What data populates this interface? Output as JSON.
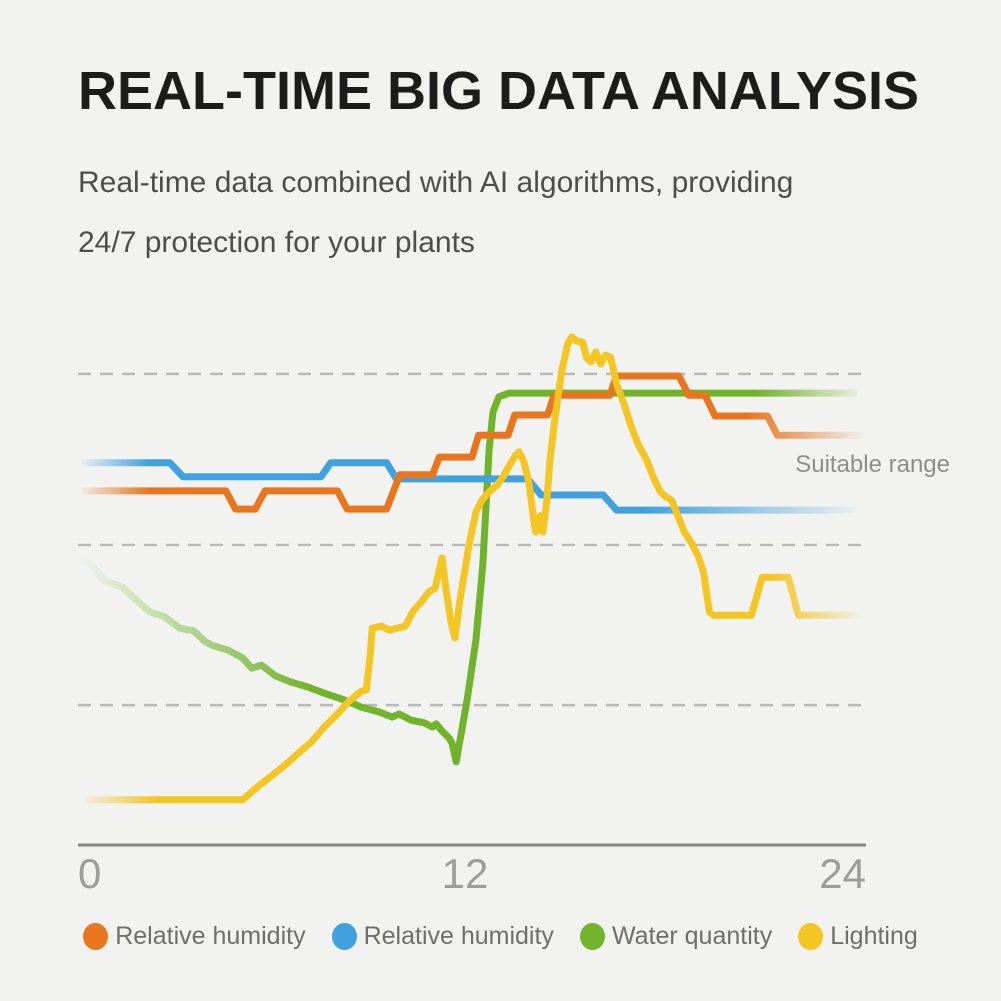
{
  "header": {
    "title": "REAL-TIME BIG DATA ANALYSIS",
    "subtitle_line1": "Real-time data combined with AI algorithms, providing",
    "subtitle_line2": "24/7 protection for your plants"
  },
  "colors": {
    "background": "#f2f2f1",
    "title_text": "#1c1c1c",
    "subtitle_text": "#4d4d4d",
    "gridline": "#b9b9b7",
    "axis": "#858585",
    "tick_text": "#9c9c9c",
    "annotation_text": "#8d8d8d",
    "legend_text": "#6e6e6e"
  },
  "chart_data": {
    "type": "line",
    "x_range": [
      0,
      24
    ],
    "x_ticks": [
      "0",
      "12",
      "24"
    ],
    "y_axis_visible": false,
    "y_scale": [
      0,
      100
    ],
    "grid": "dashed-horizontal",
    "gridline_values": [
      90.6,
      57.7,
      26.9
    ],
    "annotation": "Suitable range",
    "legend_position": "bottom",
    "series": [
      {
        "name": "Water quantity",
        "color": "#71b32b",
        "fade": {
          "in": 0.3,
          "out": 0.86
        },
        "points": [
          [
            0.06,
            55.2
          ],
          [
            0.43,
            53.7
          ],
          [
            0.82,
            50.8
          ],
          [
            1.34,
            49.6
          ],
          [
            1.67,
            47.7
          ],
          [
            2.19,
            44.8
          ],
          [
            2.61,
            44.0
          ],
          [
            3.1,
            41.7
          ],
          [
            3.52,
            41.2
          ],
          [
            3.89,
            39.0
          ],
          [
            4.13,
            38.3
          ],
          [
            4.56,
            37.5
          ],
          [
            5.01,
            36.0
          ],
          [
            5.29,
            34.0
          ],
          [
            5.59,
            34.6
          ],
          [
            6.02,
            32.5
          ],
          [
            6.5,
            31.3
          ],
          [
            6.99,
            30.4
          ],
          [
            7.5,
            29.2
          ],
          [
            8.11,
            27.9
          ],
          [
            8.63,
            26.5
          ],
          [
            9.17,
            25.6
          ],
          [
            9.57,
            24.6
          ],
          [
            9.78,
            25.2
          ],
          [
            10.15,
            24.0
          ],
          [
            10.54,
            23.5
          ],
          [
            10.79,
            22.7
          ],
          [
            10.91,
            23.3
          ],
          [
            11.09,
            21.9
          ],
          [
            11.3,
            20.6
          ],
          [
            11.39,
            19.6
          ],
          [
            11.52,
            16.0
          ],
          [
            11.85,
            27.9
          ],
          [
            12.12,
            39.4
          ],
          [
            12.33,
            53.8
          ],
          [
            12.52,
            76.0
          ],
          [
            12.64,
            83.3
          ],
          [
            12.82,
            86.2
          ],
          [
            13.13,
            86.9
          ],
          [
            23.64,
            86.9
          ]
        ]
      },
      {
        "name": "Relative humidity (blue)",
        "color": "#41a1df",
        "fade": {
          "in": 0.09,
          "out": 0.72
        },
        "points": [
          [
            0.2,
            73.5
          ],
          [
            2.8,
            73.5
          ],
          [
            3.2,
            70.8
          ],
          [
            7.4,
            70.8
          ],
          [
            7.7,
            73.5
          ],
          [
            9.4,
            73.5
          ],
          [
            9.7,
            70.4
          ],
          [
            13.7,
            70.4
          ],
          [
            14.1,
            67.3
          ],
          [
            16.0,
            67.3
          ],
          [
            16.4,
            64.4
          ],
          [
            23.6,
            64.4
          ]
        ]
      },
      {
        "name": "Relative humidity (orange)",
        "color": "#e8761e",
        "fade": {
          "in": 0.09,
          "out": 0.85
        },
        "points": [
          [
            0.2,
            68.1
          ],
          [
            4.5,
            68.1
          ],
          [
            4.8,
            64.6
          ],
          [
            5.4,
            64.6
          ],
          [
            5.7,
            68.1
          ],
          [
            7.9,
            68.1
          ],
          [
            8.2,
            64.6
          ],
          [
            9.4,
            64.6
          ],
          [
            9.8,
            71.2
          ],
          [
            10.8,
            71.2
          ],
          [
            11.0,
            74.6
          ],
          [
            12.0,
            74.6
          ],
          [
            12.2,
            78.8
          ],
          [
            13.1,
            78.8
          ],
          [
            13.3,
            82.7
          ],
          [
            14.3,
            82.7
          ],
          [
            14.5,
            86.5
          ],
          [
            16.2,
            86.5
          ],
          [
            16.4,
            90.2
          ],
          [
            18.3,
            90.2
          ],
          [
            18.6,
            86.5
          ],
          [
            19.1,
            86.5
          ],
          [
            19.4,
            82.5
          ],
          [
            21.0,
            82.5
          ],
          [
            21.3,
            78.8
          ],
          [
            23.8,
            78.8
          ]
        ]
      },
      {
        "name": "Lighting",
        "color": "#f3c623",
        "fade": {
          "in": 0.1,
          "out": 0.88
        },
        "points": [
          [
            0.3,
            8.7
          ],
          [
            5.01,
            8.7
          ],
          [
            5.47,
            11.2
          ],
          [
            5.9,
            13.3
          ],
          [
            6.35,
            15.6
          ],
          [
            6.75,
            17.9
          ],
          [
            7.11,
            19.8
          ],
          [
            7.5,
            22.7
          ],
          [
            7.9,
            25.2
          ],
          [
            8.26,
            27.7
          ],
          [
            8.63,
            29.6
          ],
          [
            8.78,
            29.8
          ],
          [
            8.9,
            36.5
          ],
          [
            8.96,
            41.7
          ],
          [
            9.24,
            42.1
          ],
          [
            9.48,
            41.3
          ],
          [
            9.72,
            41.7
          ],
          [
            9.97,
            42.1
          ],
          [
            10.21,
            45.0
          ],
          [
            10.45,
            46.7
          ],
          [
            10.69,
            48.7
          ],
          [
            10.88,
            49.4
          ],
          [
            11.0,
            52.9
          ],
          [
            11.09,
            55.2
          ],
          [
            11.21,
            49.0
          ],
          [
            11.36,
            42.9
          ],
          [
            11.48,
            39.8
          ],
          [
            11.63,
            47.1
          ],
          [
            11.76,
            51.9
          ],
          [
            11.91,
            57.7
          ],
          [
            12.12,
            64.0
          ],
          [
            12.3,
            66.3
          ],
          [
            12.52,
            67.9
          ],
          [
            12.76,
            69.2
          ],
          [
            12.97,
            71.0
          ],
          [
            13.13,
            72.9
          ],
          [
            13.31,
            74.8
          ],
          [
            13.43,
            75.6
          ],
          [
            13.58,
            73.7
          ],
          [
            13.73,
            69.8
          ],
          [
            13.88,
            62.5
          ],
          [
            13.94,
            60.2
          ],
          [
            14.07,
            63.3
          ],
          [
            14.16,
            60.2
          ],
          [
            14.28,
            66.3
          ],
          [
            14.37,
            73.7
          ],
          [
            14.52,
            81.7
          ],
          [
            14.73,
            91.0
          ],
          [
            14.92,
            96.5
          ],
          [
            15.04,
            97.7
          ],
          [
            15.19,
            96.9
          ],
          [
            15.37,
            96.7
          ],
          [
            15.49,
            93.7
          ],
          [
            15.62,
            92.9
          ],
          [
            15.77,
            94.8
          ],
          [
            15.92,
            92.5
          ],
          [
            16.07,
            94.2
          ],
          [
            16.22,
            93.8
          ],
          [
            16.41,
            88.5
          ],
          [
            16.62,
            85.0
          ],
          [
            16.83,
            80.8
          ],
          [
            17.07,
            76.9
          ],
          [
            17.32,
            74.0
          ],
          [
            17.53,
            70.6
          ],
          [
            17.74,
            67.9
          ],
          [
            17.92,
            66.9
          ],
          [
            18.08,
            66.3
          ],
          [
            18.26,
            63.5
          ],
          [
            18.47,
            60.2
          ],
          [
            18.72,
            57.7
          ],
          [
            18.9,
            55.4
          ],
          [
            19.05,
            52.5
          ],
          [
            19.14,
            48.7
          ],
          [
            19.23,
            44.8
          ],
          [
            19.35,
            44.2
          ],
          [
            20.51,
            44.2
          ],
          [
            20.84,
            51.5
          ],
          [
            21.63,
            51.5
          ],
          [
            21.94,
            44.2
          ],
          [
            23.94,
            44.2
          ]
        ]
      }
    ]
  },
  "legend": [
    {
      "label": "Relative humidity",
      "color": "#e8761e"
    },
    {
      "label": "Relative humidity",
      "color": "#41a1df"
    },
    {
      "label": "Water quantity",
      "color": "#71b32b"
    },
    {
      "label": "Lighting",
      "color": "#f3c623"
    }
  ]
}
